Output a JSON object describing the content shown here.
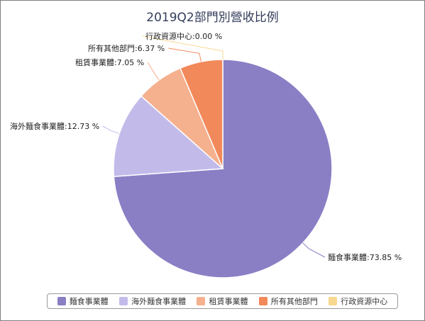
{
  "chart_data": {
    "type": "pie",
    "title": "2019Q2部門別營收比例",
    "slices": [
      {
        "name": "麵食事業體",
        "value": 73.85,
        "label": "麵食事業體:73.85 %",
        "color": "#8a7fc5"
      },
      {
        "name": "海外麵食事業體",
        "value": 12.73,
        "label": "海外麵食事業體:12.73 %",
        "color": "#c2bbea"
      },
      {
        "name": "租賃事業體",
        "value": 7.05,
        "label": "租賃事業體:7.05 %",
        "color": "#f5b08e"
      },
      {
        "name": "所有其他部門",
        "value": 6.37,
        "label": "所有其他部門:6.37 %",
        "color": "#f2895a"
      },
      {
        "name": "行政資源中心",
        "value": 0.0,
        "label": "行政資源中心:0.00 %",
        "color": "#f8d78f"
      }
    ],
    "legend_position": "bottom"
  }
}
